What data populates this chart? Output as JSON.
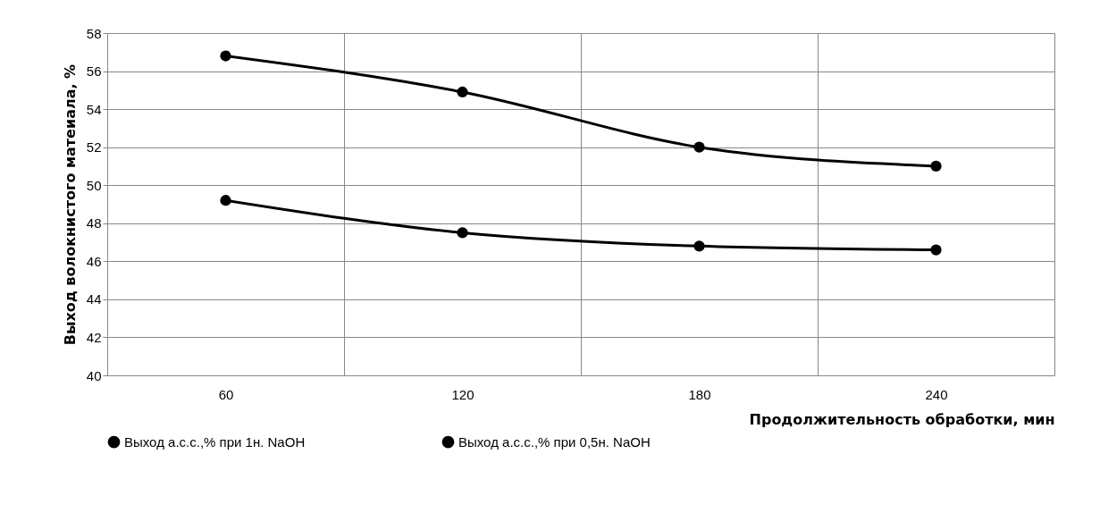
{
  "chart_data": {
    "type": "line",
    "xlabel": "Продолжительность обработки, мин",
    "ylabel": "Выход волокнистого матеиала, %",
    "categories": [
      "60",
      "120",
      "180",
      "240"
    ],
    "series": [
      {
        "name": "Выход а.с.с.,% при 1н. NaOH",
        "color": "#000000",
        "values": [
          49.2,
          47.5,
          46.8,
          46.6
        ]
      },
      {
        "name": "Выход а.с.с.,% при 0,5н. NaOH",
        "color": "#000000",
        "values": [
          56.8,
          54.9,
          52.0,
          51.0
        ]
      }
    ],
    "ylim": [
      40,
      58
    ],
    "yticks": [
      40,
      42,
      44,
      46,
      48,
      50,
      52,
      54,
      56,
      58
    ],
    "grid": true,
    "legend": "bottom",
    "marker": "circle",
    "line_style": "solid"
  }
}
